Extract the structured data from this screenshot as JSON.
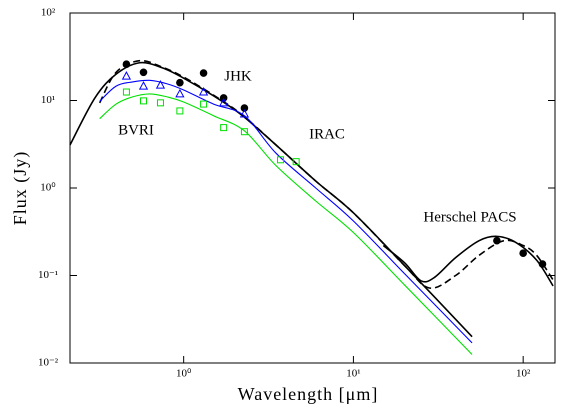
{
  "chart_data": {
    "type": "line",
    "xlabel": "Wavelength [μm]",
    "ylabel": "Flux (Jy)",
    "xscale": "log",
    "yscale": "log",
    "xlim": [
      0.214,
      154
    ],
    "ylim": [
      0.01,
      100
    ],
    "xticks": [
      {
        "value": 1,
        "label": "10⁰"
      },
      {
        "value": 10,
        "label": "10¹"
      },
      {
        "value": 100,
        "label": "10²"
      }
    ],
    "yticks": [
      {
        "value": 0.01,
        "label": "10⁻²"
      },
      {
        "value": 0.1,
        "label": "10⁻¹"
      },
      {
        "value": 1,
        "label": "10⁰"
      },
      {
        "value": 10,
        "label": "10¹"
      },
      {
        "value": 100,
        "label": "10²"
      }
    ],
    "annotations": [
      "JHK",
      "BVRI",
      "IRAC",
      "Herschel PACS"
    ],
    "series": [
      {
        "style": "solid",
        "color": "#000000",
        "x": [
          0.214,
          0.3,
          0.4,
          0.55,
          0.75,
          1,
          1.5,
          2.2,
          3.5,
          6,
          10,
          20,
          50
        ],
        "values": [
          3.1,
          10.7,
          20,
          27,
          23.6,
          18,
          11.3,
          6.8,
          3.1,
          1.2,
          0.52,
          0.13,
          0.02
        ]
      },
      {
        "style": "solid",
        "color": "#000000",
        "x": [
          15,
          20,
          25,
          30,
          40,
          55,
          70,
          90,
          120,
          150
        ],
        "values": [
          0.22,
          0.14,
          0.087,
          0.095,
          0.16,
          0.25,
          0.28,
          0.24,
          0.15,
          0.076
        ]
      },
      {
        "style": "dashed",
        "color": "#000000",
        "x": [
          0.32,
          0.4,
          0.55,
          0.75,
          1,
          1.5,
          2.2,
          3.5,
          6,
          10,
          20,
          28,
          40,
          55,
          77,
          100,
          120,
          150
        ],
        "values": [
          9.4,
          21,
          28.5,
          24,
          18.5,
          11.5,
          6.9,
          3.1,
          1.2,
          0.52,
          0.13,
          0.072,
          0.1,
          0.17,
          0.25,
          0.22,
          0.17,
          0.089
        ]
      },
      {
        "style": "solid",
        "color": "#0000ff",
        "x": [
          0.32,
          0.4,
          0.5,
          0.63,
          0.8,
          1,
          1.5,
          2.28,
          3.5,
          6,
          10,
          20,
          50
        ],
        "values": [
          9.8,
          14.6,
          16.3,
          17,
          15.5,
          13.2,
          9.1,
          6.7,
          2.5,
          1.0,
          0.42,
          0.105,
          0.017
        ]
      },
      {
        "style": "solid",
        "color": "#00e000",
        "x": [
          0.32,
          0.4,
          0.5,
          0.63,
          0.8,
          1,
          1.5,
          2.28,
          3.5,
          6,
          10,
          20,
          50
        ],
        "values": [
          6.2,
          9.1,
          11,
          11.9,
          11,
          9.6,
          6.7,
          4.5,
          1.8,
          0.71,
          0.31,
          0.078,
          0.0125
        ]
      },
      {
        "style": "marker",
        "marker": "circle",
        "color": "#000000",
        "x": [
          0.46,
          0.58,
          0.95,
          1.31,
          1.72,
          2.28,
          70,
          100,
          130
        ],
        "values": [
          26,
          21,
          16,
          20.6,
          10.7,
          8.2,
          0.25,
          0.18,
          0.135
        ]
      },
      {
        "style": "marker",
        "marker": "triangle",
        "color": "#0000ff",
        "x": [
          0.46,
          0.58,
          0.73,
          0.95,
          1.31,
          1.72,
          2.28
        ],
        "values": [
          19,
          14.6,
          15,
          11.9,
          12.5,
          9.4,
          7.0
        ]
      },
      {
        "style": "marker",
        "marker": "square",
        "color": "#00e000",
        "x": [
          0.46,
          0.58,
          0.73,
          0.95,
          1.31,
          1.72,
          2.28,
          3.72,
          4.6
        ],
        "values": [
          12.5,
          9.9,
          9.4,
          7.6,
          9.1,
          4.9,
          4.4,
          2.1,
          2.0
        ]
      }
    ]
  }
}
